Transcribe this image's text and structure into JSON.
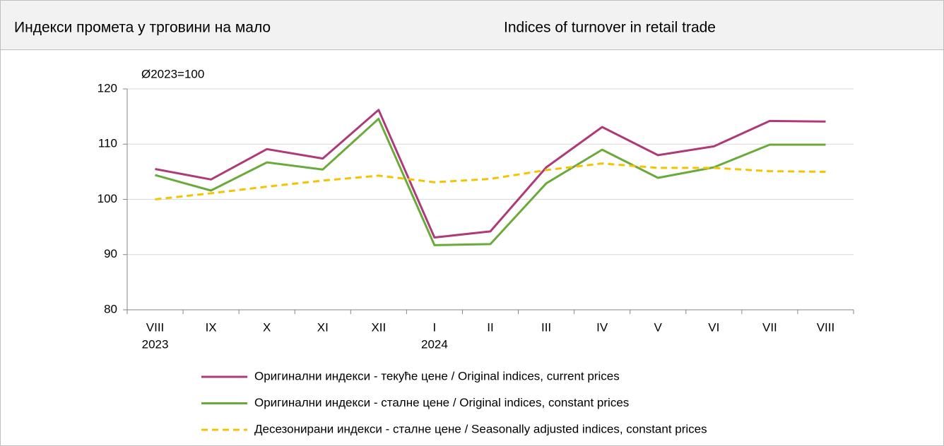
{
  "chart_data": {
    "type": "line",
    "title": "Индекси промета у трговини на мало",
    "title_en": "Indices of turnover in retail trade",
    "annotation": "Ø2023=100",
    "categories": [
      "VIII",
      "IX",
      "X",
      "XI",
      "XII",
      "I",
      "II",
      "III",
      "IV",
      "V",
      "VI",
      "VII",
      "VIII"
    ],
    "category_sublabels": [
      "2023",
      null,
      null,
      null,
      null,
      "2024",
      null,
      null,
      null,
      null,
      null,
      null,
      null
    ],
    "series": [
      {
        "name": "Оригинални индекси - текуће цене / Original indices, current prices",
        "color": "#ae3a78",
        "dashed": false,
        "values": [
          105.5,
          103.6,
          109.1,
          107.4,
          116.2,
          93.1,
          94.2,
          105.8,
          113.1,
          108.0,
          109.6,
          114.2,
          114.1
        ]
      },
      {
        "name": "Оригинални индекси - сталне цене / Original indices, constant prices",
        "color": "#6aaa3a",
        "dashed": false,
        "values": [
          104.4,
          101.6,
          106.7,
          105.4,
          114.6,
          91.7,
          91.9,
          102.9,
          109.0,
          103.9,
          105.8,
          109.9,
          109.9
        ]
      },
      {
        "name": "Десезонирани индекси - сталне цене / Seasonally adjusted indices, constant prices",
        "color": "#f5c400",
        "dashed": true,
        "values": [
          100.0,
          101.1,
          102.3,
          103.4,
          104.3,
          103.1,
          103.7,
          105.3,
          106.5,
          105.7,
          105.7,
          105.1,
          105.0
        ]
      }
    ],
    "ylim": [
      80,
      120
    ],
    "yticks": [
      80,
      90,
      100,
      110,
      120
    ],
    "grid": true,
    "legend": "bottom"
  }
}
